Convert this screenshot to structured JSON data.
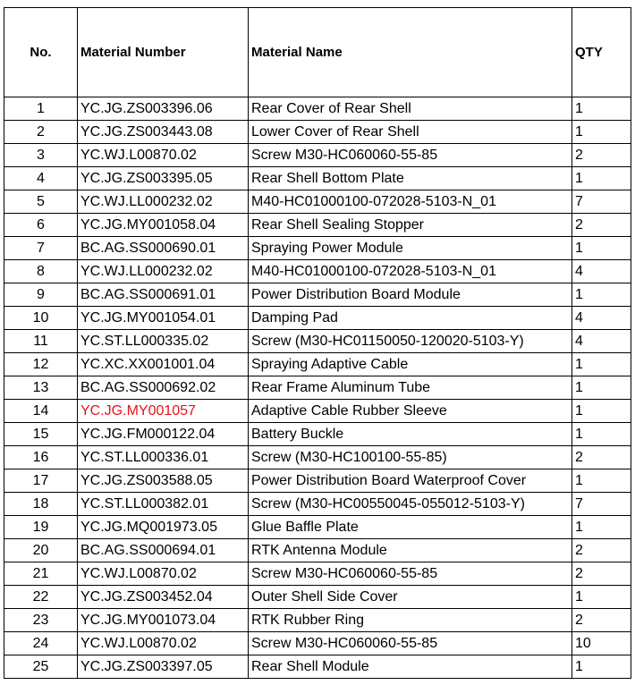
{
  "headers": {
    "no": "No.",
    "material_number": "Material Number",
    "material_name": "Material Name",
    "qty": "QTY"
  },
  "highlight_color": "#e8121a",
  "rows": [
    {
      "no": "1",
      "number": "YC.JG.ZS003396.06",
      "name": "Rear Cover of Rear Shell",
      "qty": "1"
    },
    {
      "no": "2",
      "number": "YC.JG.ZS003443.08",
      "name": "Lower Cover of Rear Shell",
      "qty": "1"
    },
    {
      "no": "3",
      "number": "YC.WJ.L00870.02",
      "name": "Screw M30-HC060060-55-85",
      "qty": "2"
    },
    {
      "no": "4",
      "number": "YC.JG.ZS003395.05",
      "name": "Rear Shell Bottom Plate",
      "qty": "1"
    },
    {
      "no": "5",
      "number": "YC.WJ.LL000232.02",
      "name": "M40-HC01000100-072028-5103-N_01",
      "qty": "7"
    },
    {
      "no": "6",
      "number": "YC.JG.MY001058.04",
      "name": "Rear Shell Sealing Stopper",
      "qty": "2"
    },
    {
      "no": "7",
      "number": "BC.AG.SS000690.01",
      "name": "Spraying Power Module",
      "qty": "1"
    },
    {
      "no": "8",
      "number": "YC.WJ.LL000232.02",
      "name": "M40-HC01000100-072028-5103-N_01",
      "qty": "4"
    },
    {
      "no": "9",
      "number": "BC.AG.SS000691.01",
      "name": "Power Distribution Board Module",
      "qty": "1"
    },
    {
      "no": "10",
      "number": "YC.JG.MY001054.01",
      "name": "Damping Pad",
      "qty": "4"
    },
    {
      "no": "11",
      "number": "YC.ST.LL000335.02",
      "name": "Screw (M30-HC01150050-120020-5103-Y)",
      "qty": "4"
    },
    {
      "no": "12",
      "number": "YC.XC.XX001001.04",
      "name": "Spraying Adaptive Cable",
      "qty": "1"
    },
    {
      "no": "13",
      "number": "BC.AG.SS000692.02",
      "name": "Rear Frame Aluminum Tube",
      "qty": "1"
    },
    {
      "no": "14",
      "number": "YC.JG.MY001057",
      "name": "Adaptive Cable Rubber Sleeve",
      "qty": "1",
      "highlight": true
    },
    {
      "no": "15",
      "number": "YC.JG.FM000122.04",
      "name": "Battery Buckle",
      "qty": "1"
    },
    {
      "no": "16",
      "number": "YC.ST.LL000336.01",
      "name": "Screw (M30-HC100100-55-85)",
      "qty": "2"
    },
    {
      "no": "17",
      "number": "YC.JG.ZS003588.05",
      "name": "Power Distribution Board Waterproof Cover",
      "qty": "1"
    },
    {
      "no": "18",
      "number": "YC.ST.LL000382.01",
      "name": "Screw (M30-HC00550045-055012-5103-Y)",
      "qty": "7"
    },
    {
      "no": "19",
      "number": "YC.JG.MQ001973.05",
      "name": "Glue Baffle Plate",
      "qty": "1"
    },
    {
      "no": "20",
      "number": "BC.AG.SS000694.01",
      "name": "RTK Antenna Module",
      "qty": "2"
    },
    {
      "no": "21",
      "number": "YC.WJ.L00870.02",
      "name": "Screw M30-HC060060-55-85",
      "qty": "2"
    },
    {
      "no": "22",
      "number": "YC.JG.ZS003452.04",
      "name": "Outer Shell Side Cover",
      "qty": "1"
    },
    {
      "no": "23",
      "number": "YC.JG.MY001073.04",
      "name": "RTK Rubber Ring",
      "qty": "2"
    },
    {
      "no": "24",
      "number": "YC.WJ.L00870.02",
      "name": "Screw M30-HC060060-55-85",
      "qty": "10"
    },
    {
      "no": "25",
      "number": "YC.JG.ZS003397.05",
      "name": "Rear Shell Module",
      "qty": "1"
    }
  ]
}
